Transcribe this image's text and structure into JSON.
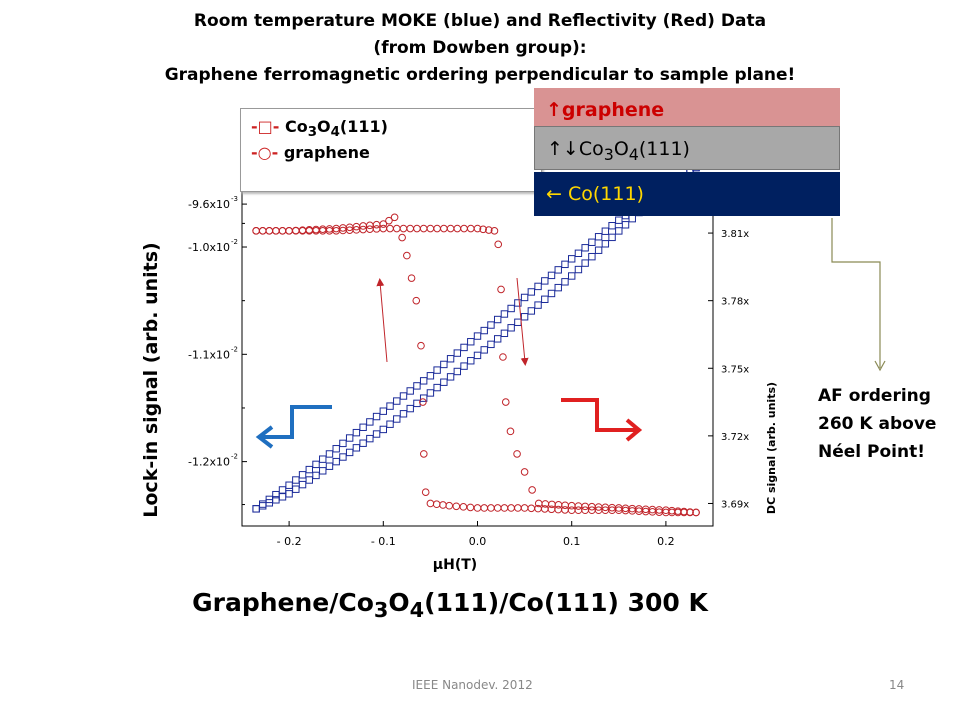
{
  "slide": {
    "title_lines": [
      "Room temperature MOKE (blue) and Reflectivity (Red) Data",
      "(from Dowben group):",
      "Graphene ferromagnetic ordering perpendicular to sample plane!"
    ],
    "subtitle_pre": "Graphene/Co",
    "subtitle_sub1": "3",
    "subtitle_mid": "O",
    "subtitle_sub2": "4",
    "subtitle_post": "(111)/Co(111) 300 K",
    "footer_left": "IEEE Nanodev. 2012",
    "footer_right": "14",
    "note_lines": [
      "AF ordering",
      "260 K above",
      "Néel Point!"
    ]
  },
  "layers": {
    "graphene_arrow": "↑",
    "graphene_label": "graphene",
    "oxide_arrows": "↑↓",
    "oxide_pre": "Co",
    "oxide_sub1": "3",
    "oxide_mid": "O",
    "oxide_sub2": "4",
    "oxide_post": "(111)",
    "co_arrow": "←",
    "co_label": " Co(111)"
  },
  "legend": {
    "item1_marker": "-□-",
    "item1_pre": " Co",
    "item1_sub1": "3",
    "item1_mid": "O",
    "item1_sub2": "4",
    "item1_post": "(111)",
    "item2_marker": "-○-",
    "item2_label": " graphene"
  },
  "colors": {
    "blue_series": "#1a2a99",
    "red_series": "#c0242a",
    "arrow_blue": "#1f6fc0",
    "arrow_red": "#e02020",
    "connector": "#8a8a55"
  },
  "chart_data": {
    "type": "scatter",
    "xlabel_symbol": "µ",
    "xlabel": "H(T)",
    "ylabel": "Lock-in signal (arb. units)",
    "y2label": "DC signal (arb. units)",
    "xlim": [
      -0.25,
      0.25
    ],
    "ylim": [
      -0.0126,
      -0.00945
    ],
    "y2lim": [
      3.68,
      3.83
    ],
    "xticks": [
      -0.2,
      -0.1,
      0.0,
      0.1,
      0.2
    ],
    "xtick_labels": [
      "- 0.2",
      "- 0.1",
      "0.0",
      "0.1",
      "0.2"
    ],
    "yticks": [
      -0.0096,
      -0.01,
      -0.011,
      -0.012
    ],
    "ytick_labels": [
      "-9.6x10",
      "-1.0x10",
      "-1.1x10",
      "-1.2x10"
    ],
    "ytick_exponents": [
      "-3",
      "-2",
      "-2",
      "-2"
    ],
    "y2ticks": [
      3.81,
      3.78,
      3.75,
      3.72,
      3.69
    ],
    "y2tick_labels": [
      "3.81x",
      "3.78x",
      "3.75x",
      "3.72x",
      "3.69x"
    ],
    "series": [
      {
        "name": "Co3O4(111)",
        "axis": "left",
        "marker": "square",
        "branch_up": {
          "x": [
            -0.235,
            -0.2,
            -0.15,
            -0.1,
            -0.05,
            0.0,
            0.05,
            0.1,
            0.15,
            0.2,
            0.232
          ],
          "y": [
            -0.01244,
            -0.01222,
            -0.01188,
            -0.01153,
            -0.0112,
            -0.01083,
            -0.01047,
            -0.01011,
            -0.00975,
            -0.00945,
            -0.00926
          ]
        },
        "branch_down": {
          "x": [
            0.232,
            0.2,
            0.15,
            0.1,
            0.05,
            0.0,
            -0.05,
            -0.1,
            -0.15,
            -0.2,
            -0.235
          ],
          "y": [
            -0.00926,
            -0.00945,
            -0.00985,
            -0.01027,
            -0.01065,
            -0.01101,
            -0.01136,
            -0.0117,
            -0.012,
            -0.0123,
            -0.01244
          ]
        }
      },
      {
        "name": "graphene",
        "axis": "right",
        "marker": "circle",
        "branch_down": {
          "x": [
            -0.235,
            -0.2,
            -0.15,
            -0.1,
            -0.088,
            -0.08,
            -0.075,
            -0.07,
            -0.065,
            -0.06,
            -0.058,
            -0.057,
            -0.055,
            -0.05,
            -0.03,
            0.0,
            0.05,
            0.1,
            0.15,
            0.2,
            0.232
          ],
          "y": [
            3.811,
            3.811,
            3.812,
            3.814,
            3.817,
            3.808,
            3.8,
            3.79,
            3.78,
            3.76,
            3.735,
            3.712,
            3.695,
            3.69,
            3.689,
            3.688,
            3.688,
            3.687,
            3.687,
            3.686,
            3.686
          ]
        },
        "branch_up": {
          "x": [
            0.232,
            0.2,
            0.15,
            0.1,
            0.065,
            0.058,
            0.05,
            0.042,
            0.035,
            0.03,
            0.027,
            0.025,
            0.022,
            0.018,
            0.0,
            -0.05,
            -0.1,
            -0.15,
            -0.2,
            -0.235
          ],
          "y": [
            3.686,
            3.687,
            3.688,
            3.689,
            3.69,
            3.696,
            3.704,
            3.712,
            3.722,
            3.735,
            3.755,
            3.785,
            3.805,
            3.811,
            3.812,
            3.812,
            3.812,
            3.811,
            3.811,
            3.811
          ]
        }
      }
    ]
  }
}
